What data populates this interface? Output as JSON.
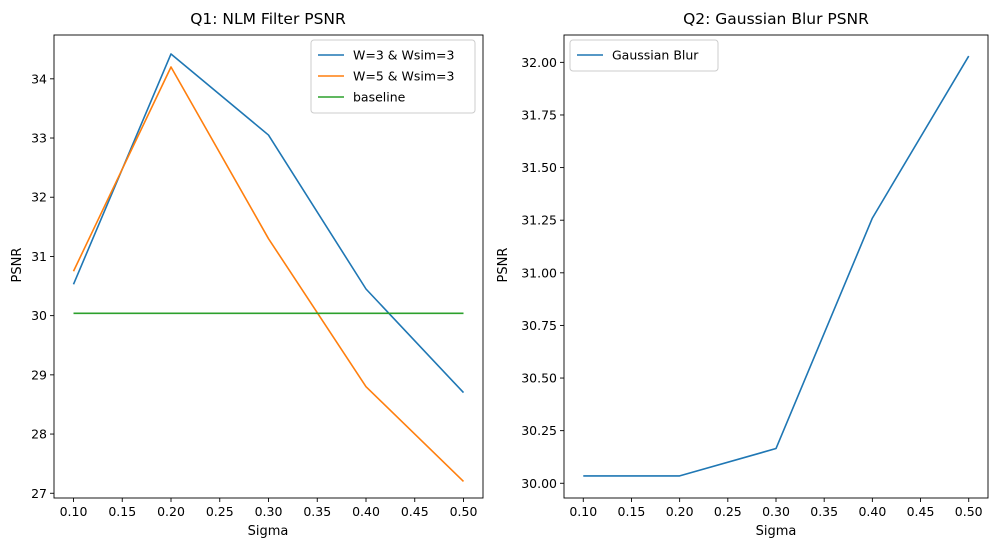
{
  "chart_data": [
    {
      "type": "line",
      "title": "Q1: NLM Filter PSNR",
      "xlabel": "Sigma",
      "ylabel": "PSNR",
      "x": [
        0.1,
        0.2,
        0.3,
        0.4,
        0.5
      ],
      "xticks": [
        "0.10",
        "0.15",
        "0.20",
        "0.25",
        "0.30",
        "0.35",
        "0.40",
        "0.45",
        "0.50"
      ],
      "yticks": [
        "27",
        "28",
        "29",
        "30",
        "31",
        "32",
        "33",
        "34"
      ],
      "xlim": [
        0.08,
        0.52
      ],
      "ylim": [
        26.92,
        34.74
      ],
      "legend": "top-right",
      "series": [
        {
          "name": "W=3 & Wsim=3",
          "color": "#1f77b4",
          "values": [
            30.53,
            34.42,
            33.05,
            30.45,
            28.7
          ]
        },
        {
          "name": "W=5 & Wsim=3",
          "color": "#ff7f0e",
          "values": [
            30.75,
            34.2,
            31.3,
            28.8,
            27.2
          ]
        },
        {
          "name": "baseline",
          "color": "#2ca02c",
          "values": [
            30.04,
            30.04,
            30.04,
            30.04,
            30.04
          ]
        }
      ]
    },
    {
      "type": "line",
      "title": "Q2: Gaussian Blur PSNR",
      "xlabel": "Sigma",
      "ylabel": "PSNR",
      "x": [
        0.1,
        0.2,
        0.3,
        0.4,
        0.5
      ],
      "xticks": [
        "0.10",
        "0.15",
        "0.20",
        "0.25",
        "0.30",
        "0.35",
        "0.40",
        "0.45",
        "0.50"
      ],
      "yticks": [
        "30.00",
        "30.25",
        "30.50",
        "30.75",
        "31.00",
        "31.25",
        "31.50",
        "31.75",
        "32.00"
      ],
      "xlim": [
        0.08,
        0.52
      ],
      "ylim": [
        29.93,
        32.13
      ],
      "legend": "top-left",
      "series": [
        {
          "name": "Gaussian Blur",
          "color": "#1f77b4",
          "values": [
            30.035,
            30.035,
            30.165,
            31.26,
            32.03
          ]
        }
      ]
    }
  ]
}
